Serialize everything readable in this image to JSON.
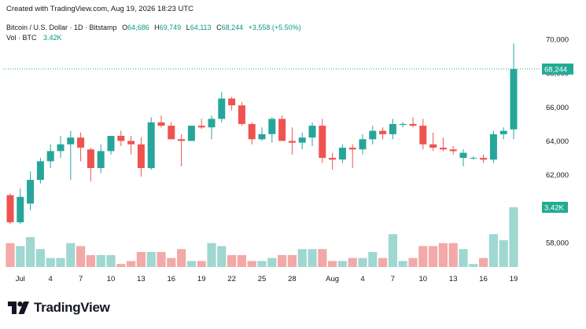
{
  "header": {
    "created_text": "Created with TradingView.com, Aug 19, 2026 18:23 UTC"
  },
  "legend": {
    "symbol": "Bitcoin / U.S. Dollar · 1D · Bitstamp",
    "o_label": "O",
    "o_value": "64,686",
    "h_label": "H",
    "h_value": "69,749",
    "l_label": "L",
    "l_value": "64,113",
    "c_label": "C",
    "c_value": "68,244",
    "change": "+3,558 (+5.50%)"
  },
  "volume_legend": {
    "label": "Vol · BTC",
    "value": "3.42K"
  },
  "last_price_label": "68,244",
  "last_volume_label": "3.42K",
  "brand": {
    "name": "TradingView"
  },
  "colors": {
    "up": "#26a69a",
    "down": "#ef5350",
    "up_text": "#089981",
    "up_volume": "#9fd7d1",
    "down_volume": "#f2a9a7",
    "badge": "#22ab94"
  },
  "chart_data": {
    "type": "candlestick",
    "title": "Bitcoin / U.S. Dollar · 1D · Bitstamp",
    "y_ticks": [
      "70,000",
      "68,000",
      "66,000",
      "64,000",
      "62,000",
      "58,000"
    ],
    "y_range": [
      56500,
      71000
    ],
    "x_ticks": [
      "Jul",
      "4",
      "7",
      "10",
      "13",
      "16",
      "19",
      "22",
      "25",
      "28",
      "Aug",
      "4",
      "7",
      "10",
      "13",
      "16",
      "19"
    ],
    "last_price": 68244,
    "candles": [
      {
        "d": "Jun 30",
        "o": 60800,
        "h": 60900,
        "l": 59100,
        "c": 59200,
        "v": 0.8
      },
      {
        "d": "Jul 1",
        "o": 59200,
        "h": 61200,
        "l": 59100,
        "c": 60700,
        "v": 0.7
      },
      {
        "d": "Jul 2",
        "o": 60300,
        "h": 62200,
        "l": 59900,
        "c": 61700,
        "v": 1.0
      },
      {
        "d": "Jul 3",
        "o": 61700,
        "h": 63000,
        "l": 61500,
        "c": 62800,
        "v": 0.6
      },
      {
        "d": "Jul 4",
        "o": 62800,
        "h": 63800,
        "l": 62400,
        "c": 63400,
        "v": 0.3
      },
      {
        "d": "Jul 5",
        "o": 63400,
        "h": 64300,
        "l": 63000,
        "c": 63800,
        "v": 0.3
      },
      {
        "d": "Jul 6",
        "o": 63800,
        "h": 64600,
        "l": 61700,
        "c": 64200,
        "v": 0.8
      },
      {
        "d": "Jul 7",
        "o": 64200,
        "h": 64500,
        "l": 62800,
        "c": 63600,
        "v": 0.7
      },
      {
        "d": "Jul 8",
        "o": 63500,
        "h": 63600,
        "l": 61600,
        "c": 62400,
        "v": 0.4
      },
      {
        "d": "Jul 9",
        "o": 62400,
        "h": 63800,
        "l": 62100,
        "c": 63400,
        "v": 0.4
      },
      {
        "d": "Jul 10",
        "o": 63400,
        "h": 64300,
        "l": 63200,
        "c": 64300,
        "v": 0.4
      },
      {
        "d": "Jul 11",
        "o": 64300,
        "h": 64600,
        "l": 63700,
        "c": 64000,
        "v": 0.1
      },
      {
        "d": "Jul 12",
        "o": 64000,
        "h": 64300,
        "l": 63200,
        "c": 63800,
        "v": 0.2
      },
      {
        "d": "Jul 13",
        "o": 63800,
        "h": 64200,
        "l": 61900,
        "c": 62400,
        "v": 0.5
      },
      {
        "d": "Jul 14",
        "o": 62400,
        "h": 65400,
        "l": 62300,
        "c": 65100,
        "v": 0.5
      },
      {
        "d": "Jul 15",
        "o": 65100,
        "h": 65500,
        "l": 64800,
        "c": 64900,
        "v": 0.5
      },
      {
        "d": "Jul 16",
        "o": 64900,
        "h": 65100,
        "l": 64100,
        "c": 64100,
        "v": 0.3
      },
      {
        "d": "Jul 17",
        "o": 64100,
        "h": 64400,
        "l": 62500,
        "c": 64000,
        "v": 0.6
      },
      {
        "d": "Jul 18",
        "o": 64000,
        "h": 64900,
        "l": 64000,
        "c": 64900,
        "v": 0.2
      },
      {
        "d": "Jul 19",
        "o": 64900,
        "h": 65300,
        "l": 64700,
        "c": 64800,
        "v": 0.2
      },
      {
        "d": "Jul 20",
        "o": 64800,
        "h": 65500,
        "l": 64100,
        "c": 65300,
        "v": 0.8
      },
      {
        "d": "Jul 21",
        "o": 65300,
        "h": 66900,
        "l": 65100,
        "c": 66500,
        "v": 0.7
      },
      {
        "d": "Jul 22",
        "o": 66500,
        "h": 66600,
        "l": 65800,
        "c": 66100,
        "v": 0.4
      },
      {
        "d": "Jul 23",
        "o": 66100,
        "h": 66300,
        "l": 64900,
        "c": 65000,
        "v": 0.4
      },
      {
        "d": "Jul 24",
        "o": 65000,
        "h": 65100,
        "l": 63800,
        "c": 64100,
        "v": 0.2
      },
      {
        "d": "Jul 25",
        "o": 64100,
        "h": 64800,
        "l": 64000,
        "c": 64400,
        "v": 0.2
      },
      {
        "d": "Jul 26",
        "o": 64400,
        "h": 65400,
        "l": 63900,
        "c": 65300,
        "v": 0.3
      },
      {
        "d": "Jul 27",
        "o": 65300,
        "h": 65500,
        "l": 64000,
        "c": 64000,
        "v": 0.4
      },
      {
        "d": "Jul 28",
        "o": 64000,
        "h": 64800,
        "l": 63200,
        "c": 63900,
        "v": 0.4
      },
      {
        "d": "Jul 29",
        "o": 63900,
        "h": 64500,
        "l": 63500,
        "c": 64200,
        "v": 0.6
      },
      {
        "d": "Jul 30",
        "o": 64200,
        "h": 65100,
        "l": 63700,
        "c": 64900,
        "v": 0.6
      },
      {
        "d": "Jul 31",
        "o": 64900,
        "h": 65300,
        "l": 62700,
        "c": 63000,
        "v": 0.6
      },
      {
        "d": "Aug 1",
        "o": 63000,
        "h": 63300,
        "l": 62300,
        "c": 62900,
        "v": 0.2
      },
      {
        "d": "Aug 2",
        "o": 62900,
        "h": 63800,
        "l": 62700,
        "c": 63600,
        "v": 0.2
      },
      {
        "d": "Aug 3",
        "o": 63600,
        "h": 63800,
        "l": 62400,
        "c": 63500,
        "v": 0.3
      },
      {
        "d": "Aug 4",
        "o": 63500,
        "h": 64400,
        "l": 63200,
        "c": 64100,
        "v": 0.3
      },
      {
        "d": "Aug 5",
        "o": 64100,
        "h": 64900,
        "l": 63800,
        "c": 64600,
        "v": 0.5
      },
      {
        "d": "Aug 6",
        "o": 64600,
        "h": 64800,
        "l": 64100,
        "c": 64400,
        "v": 0.3
      },
      {
        "d": "Aug 7",
        "o": 64400,
        "h": 65300,
        "l": 64100,
        "c": 65000,
        "v": 1.1
      },
      {
        "d": "Aug 8",
        "o": 64950,
        "h": 65100,
        "l": 64800,
        "c": 65000,
        "v": 0.2
      },
      {
        "d": "Aug 9",
        "o": 65000,
        "h": 65400,
        "l": 64800,
        "c": 64900,
        "v": 0.3
      },
      {
        "d": "Aug 10",
        "o": 64900,
        "h": 65300,
        "l": 63500,
        "c": 63800,
        "v": 0.7
      },
      {
        "d": "Aug 11",
        "o": 63800,
        "h": 64500,
        "l": 63400,
        "c": 63600,
        "v": 0.7
      },
      {
        "d": "Aug 12",
        "o": 63600,
        "h": 64200,
        "l": 63400,
        "c": 63500,
        "v": 0.8
      },
      {
        "d": "Aug 13",
        "o": 63500,
        "h": 63700,
        "l": 63200,
        "c": 63400,
        "v": 0.8
      },
      {
        "d": "Aug 14",
        "o": 63000,
        "h": 63500,
        "l": 62500,
        "c": 63300,
        "v": 0.6
      },
      {
        "d": "Aug 15",
        "o": 63000,
        "h": 63100,
        "l": 62900,
        "c": 63000,
        "v": 0.1
      },
      {
        "d": "Aug 16",
        "o": 63000,
        "h": 63200,
        "l": 62700,
        "c": 62900,
        "v": 0.3
      },
      {
        "d": "Aug 17",
        "o": 62900,
        "h": 64600,
        "l": 62700,
        "c": 64400,
        "v": 1.1
      },
      {
        "d": "Aug 18",
        "o": 64400,
        "h": 64800,
        "l": 64100,
        "c": 64600,
        "v": 0.9
      },
      {
        "d": "Aug 19",
        "o": 64686,
        "h": 69749,
        "l": 64113,
        "c": 68244,
        "v": 2.0
      }
    ]
  }
}
